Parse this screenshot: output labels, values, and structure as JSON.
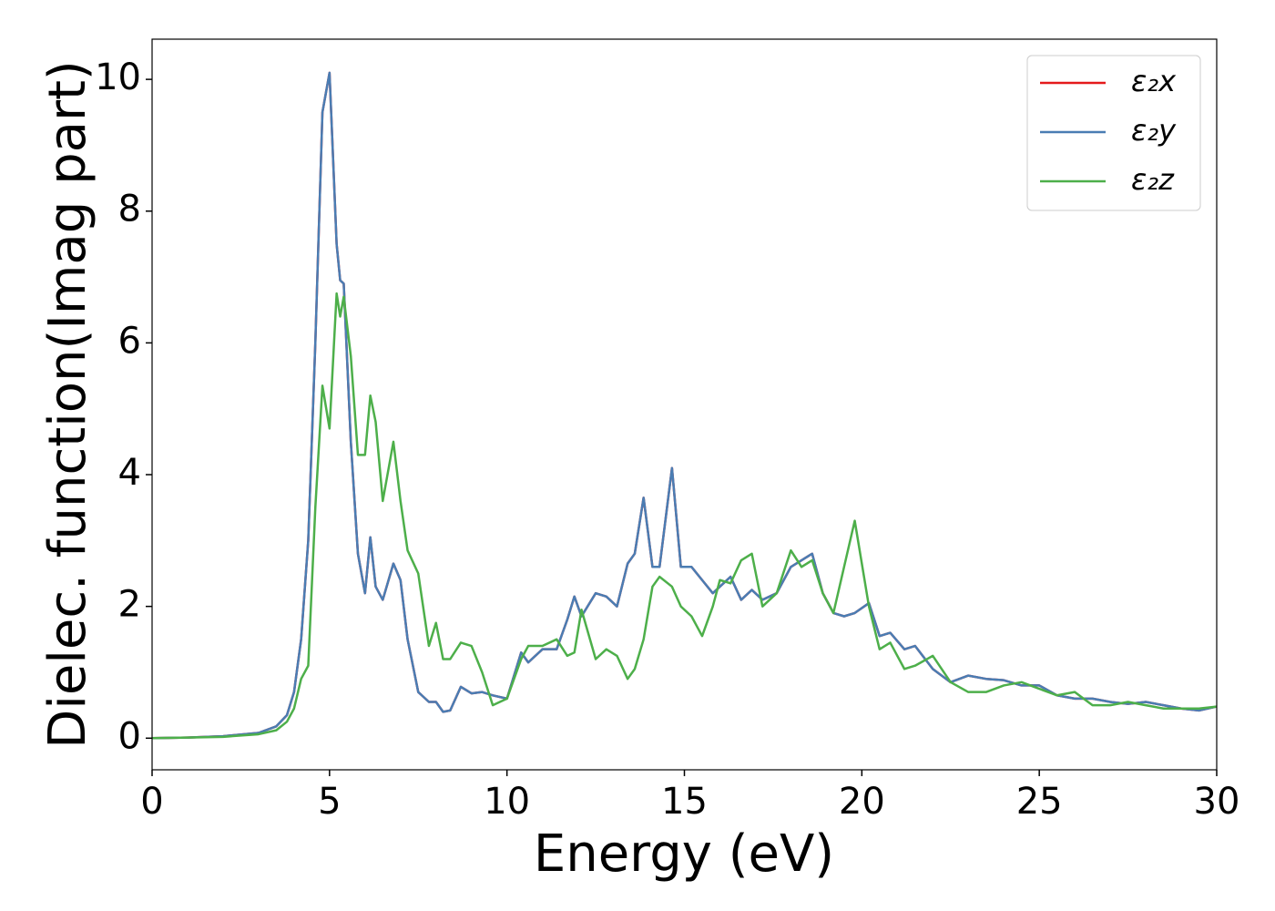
{
  "chart_data": {
    "type": "line",
    "xlabel": "Energy (eV)",
    "ylabel": "Dielec. function(Imag part)",
    "x": [
      0,
      1,
      2,
      3,
      3.5,
      3.8,
      4.0,
      4.2,
      4.4,
      4.6,
      4.8,
      5.0,
      5.2,
      5.3,
      5.4,
      5.6,
      5.8,
      6.0,
      6.15,
      6.3,
      6.5,
      6.8,
      7.0,
      7.2,
      7.5,
      7.8,
      8.0,
      8.2,
      8.4,
      8.7,
      9.0,
      9.3,
      9.6,
      10.0,
      10.4,
      10.6,
      11.0,
      11.4,
      11.7,
      11.9,
      12.1,
      12.5,
      12.8,
      13.1,
      13.4,
      13.6,
      13.85,
      14.1,
      14.3,
      14.65,
      14.9,
      15.2,
      15.5,
      15.8,
      16.0,
      16.3,
      16.6,
      16.9,
      17.2,
      17.6,
      18.0,
      18.3,
      18.6,
      18.9,
      19.2,
      19.5,
      19.8,
      20.2,
      20.5,
      20.8,
      21.2,
      21.5,
      22,
      22.5,
      23,
      23.5,
      24,
      24.5,
      25,
      25.5,
      26,
      26.5,
      27,
      27.5,
      28,
      28.5,
      29,
      29.5,
      30
    ],
    "series": [
      {
        "name": "ε₂x",
        "color": "#e41a1c",
        "values": [
          0,
          0.01,
          0.03,
          0.08,
          0.18,
          0.35,
          0.7,
          1.5,
          3.0,
          6.0,
          9.5,
          10.1,
          7.5,
          6.95,
          6.9,
          4.5,
          2.8,
          2.2,
          3.05,
          2.3,
          2.1,
          2.65,
          2.4,
          1.5,
          0.7,
          0.55,
          0.55,
          0.4,
          0.42,
          0.78,
          0.68,
          0.7,
          0.65,
          0.6,
          1.3,
          1.15,
          1.35,
          1.35,
          1.8,
          2.15,
          1.85,
          2.2,
          2.15,
          2.0,
          2.65,
          2.8,
          3.65,
          2.6,
          2.6,
          4.1,
          2.6,
          2.6,
          2.4,
          2.2,
          2.3,
          2.45,
          2.1,
          2.25,
          2.1,
          2.2,
          2.6,
          2.7,
          2.8,
          2.2,
          1.9,
          1.85,
          1.9,
          2.05,
          1.55,
          1.6,
          1.35,
          1.4,
          1.05,
          0.85,
          0.95,
          0.9,
          0.88,
          0.8,
          0.8,
          0.65,
          0.6,
          0.6,
          0.55,
          0.52,
          0.55,
          0.5,
          0.45,
          0.42,
          0.48
        ]
      },
      {
        "name": "ε₂y",
        "color": "#4a7db3",
        "values": [
          0,
          0.01,
          0.03,
          0.08,
          0.18,
          0.35,
          0.7,
          1.5,
          3.0,
          6.0,
          9.5,
          10.1,
          7.5,
          6.95,
          6.9,
          4.5,
          2.8,
          2.2,
          3.05,
          2.3,
          2.1,
          2.65,
          2.4,
          1.5,
          0.7,
          0.55,
          0.55,
          0.4,
          0.42,
          0.78,
          0.68,
          0.7,
          0.65,
          0.6,
          1.3,
          1.15,
          1.35,
          1.35,
          1.8,
          2.15,
          1.85,
          2.2,
          2.15,
          2.0,
          2.65,
          2.8,
          3.65,
          2.6,
          2.6,
          4.1,
          2.6,
          2.6,
          2.4,
          2.2,
          2.3,
          2.45,
          2.1,
          2.25,
          2.1,
          2.2,
          2.6,
          2.7,
          2.8,
          2.2,
          1.9,
          1.85,
          1.9,
          2.05,
          1.55,
          1.6,
          1.35,
          1.4,
          1.05,
          0.85,
          0.95,
          0.9,
          0.88,
          0.8,
          0.8,
          0.65,
          0.6,
          0.6,
          0.55,
          0.52,
          0.55,
          0.5,
          0.45,
          0.42,
          0.48
        ]
      },
      {
        "name": "ε₂z",
        "color": "#4daf4a",
        "values": [
          0,
          0.01,
          0.02,
          0.06,
          0.12,
          0.25,
          0.45,
          0.9,
          1.1,
          3.5,
          5.35,
          4.7,
          6.75,
          6.4,
          6.7,
          5.8,
          4.3,
          4.3,
          5.2,
          4.8,
          3.6,
          4.5,
          3.6,
          2.85,
          2.5,
          1.4,
          1.75,
          1.2,
          1.2,
          1.45,
          1.4,
          1.0,
          0.5,
          0.6,
          1.2,
          1.4,
          1.4,
          1.5,
          1.25,
          1.3,
          1.95,
          1.2,
          1.35,
          1.25,
          0.9,
          1.05,
          1.5,
          2.3,
          2.45,
          2.3,
          2.0,
          1.85,
          1.55,
          2.0,
          2.4,
          2.35,
          2.7,
          2.8,
          2.0,
          2.2,
          2.85,
          2.6,
          2.7,
          2.2,
          1.9,
          2.6,
          3.3,
          2.0,
          1.35,
          1.45,
          1.05,
          1.1,
          1.25,
          0.85,
          0.7,
          0.7,
          0.8,
          0.85,
          0.75,
          0.65,
          0.7,
          0.5,
          0.5,
          0.55,
          0.5,
          0.45,
          0.45,
          0.45,
          0.48
        ]
      }
    ],
    "xlim": [
      0,
      30
    ],
    "xticks": [
      0,
      5,
      10,
      15,
      20,
      25,
      30
    ],
    "ylim": [
      -0.48,
      10.61
    ],
    "yticks": [
      0,
      2,
      4,
      6,
      8,
      10
    ],
    "grid": false,
    "legend": "upper right"
  }
}
